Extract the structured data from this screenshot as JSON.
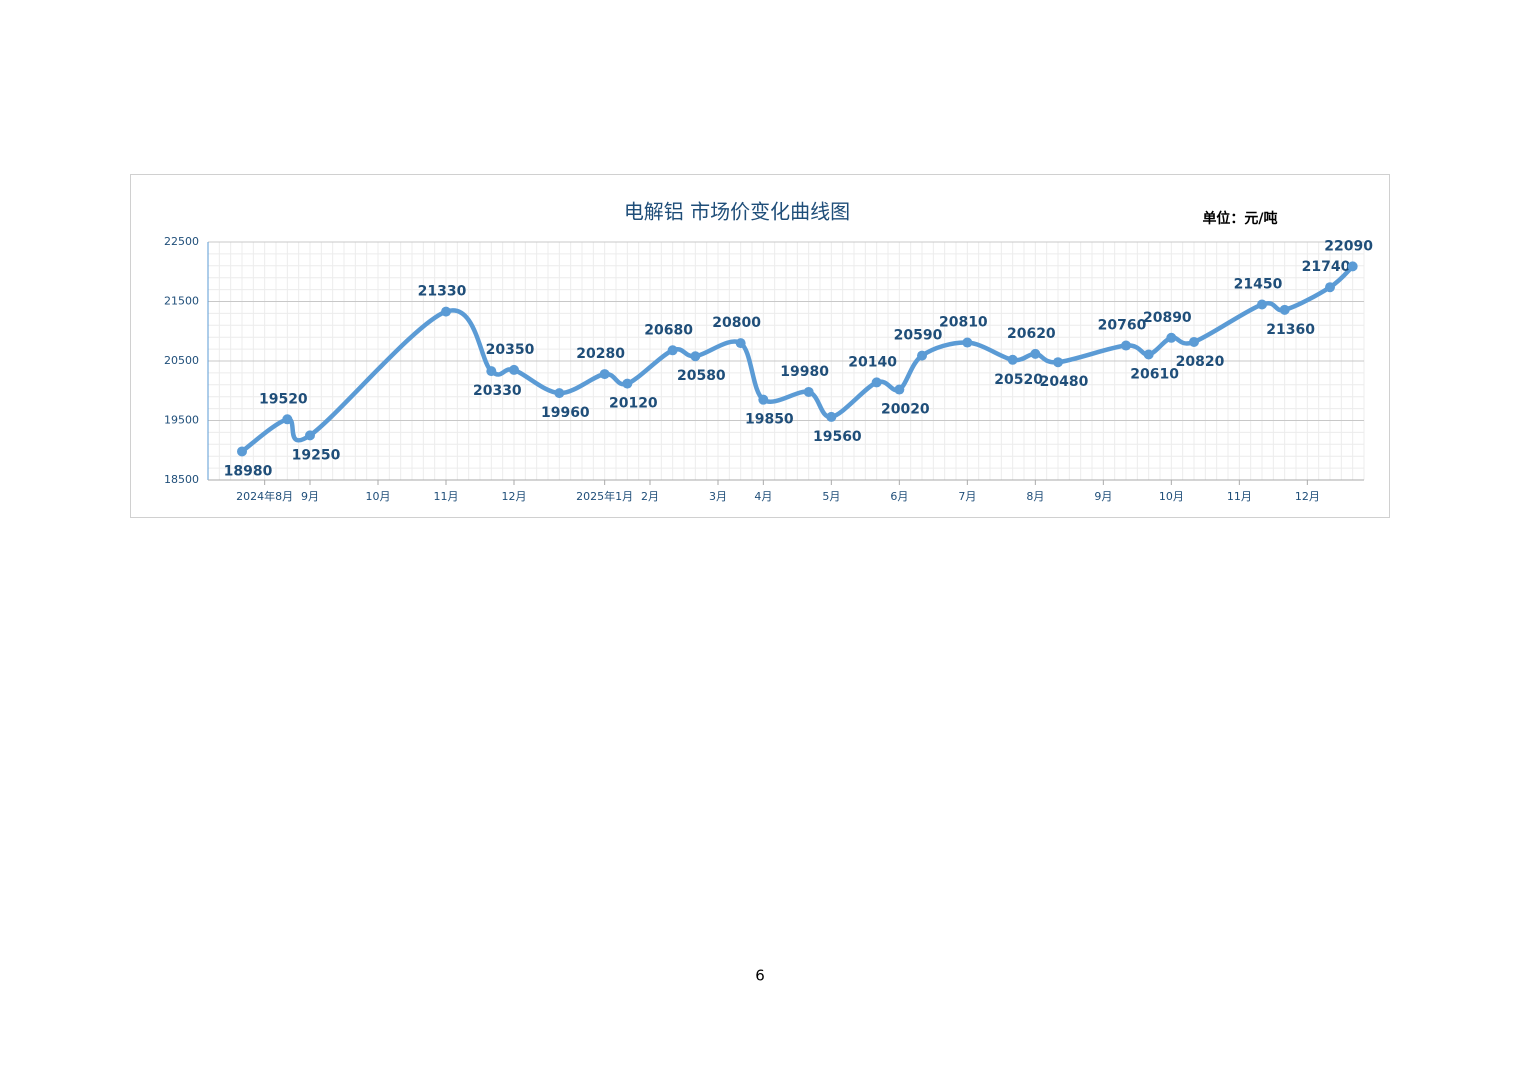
{
  "chart_data": {
    "type": "line",
    "title": "电解铝 市场价变化曲线图",
    "unit_note": "单位：元/吨",
    "x": [
      1,
      3,
      4,
      10,
      12,
      13,
      15,
      17,
      18,
      20,
      21,
      23,
      24,
      26,
      27,
      29,
      30,
      31,
      33,
      35,
      36,
      37,
      40,
      41,
      42,
      43,
      46,
      47,
      49,
      50
    ],
    "series": [
      {
        "name": "电解铝",
        "color": "#5b9bd5",
        "values": [
          18980,
          19520,
          19250,
          21330,
          20330,
          20350,
          19960,
          20280,
          20120,
          20680,
          20580,
          20800,
          19850,
          19980,
          19560,
          20140,
          20020,
          20590,
          20810,
          20520,
          20620,
          20480,
          20760,
          20610,
          20890,
          20820,
          21450,
          21360,
          21740,
          22090
        ]
      }
    ],
    "xlim": [
      -0.5,
      50.5
    ],
    "xticks": [
      {
        "value": 2,
        "label": "2024年8月"
      },
      {
        "value": 4,
        "label": "9月"
      },
      {
        "value": 7,
        "label": "10月"
      },
      {
        "value": 10,
        "label": "11月"
      },
      {
        "value": 13,
        "label": "12月"
      },
      {
        "value": 17,
        "label": "2025年1月"
      },
      {
        "value": 19,
        "label": "2月"
      },
      {
        "value": 22,
        "label": "3月"
      },
      {
        "value": 24,
        "label": "4月"
      },
      {
        "value": 27,
        "label": "5月"
      },
      {
        "value": 30,
        "label": "6月"
      },
      {
        "value": 33,
        "label": "7月"
      },
      {
        "value": 36,
        "label": "8月"
      },
      {
        "value": 39,
        "label": "9月"
      },
      {
        "value": 42,
        "label": "10月"
      },
      {
        "value": 45,
        "label": "11月"
      },
      {
        "value": 48,
        "label": "12月"
      }
    ],
    "ylim": [
      18500,
      22500
    ],
    "yticks": [
      18500,
      19500,
      20500,
      21500,
      22500
    ],
    "grid": true
  },
  "footer": {
    "page_number": "6"
  }
}
